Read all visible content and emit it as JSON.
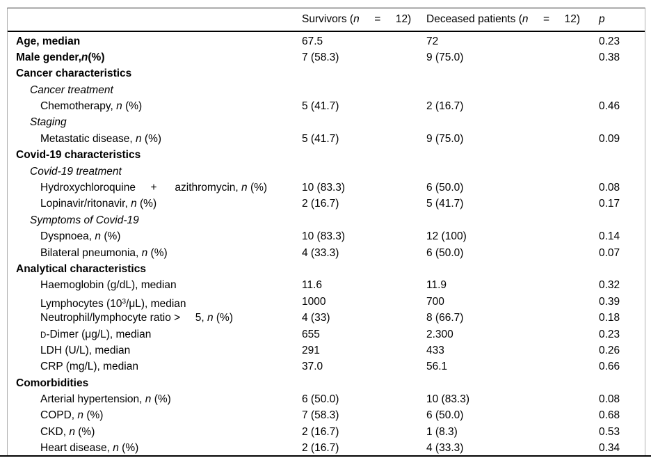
{
  "table": {
    "header": {
      "label_col": "",
      "survivors_col": [
        {
          "t": "Survivors ("
        },
        {
          "t": "n",
          "s": "i"
        },
        {
          "t": "     =     12)"
        }
      ],
      "deceased_col": [
        {
          "t": "Deceased patients ("
        },
        {
          "t": "n",
          "s": "i"
        },
        {
          "t": "     =     12)"
        }
      ],
      "p_col": [
        {
          "t": "p",
          "s": "i"
        }
      ]
    },
    "rows": [
      {
        "indent": 0,
        "bold": true,
        "parts": [
          {
            "t": "Age, median"
          }
        ],
        "v": [
          "67.5",
          "72",
          "0.23"
        ]
      },
      {
        "indent": 0,
        "bold": true,
        "parts": [
          {
            "t": "Male gender,"
          },
          {
            "t": "n",
            "s": "i"
          },
          {
            "t": "(%)"
          }
        ],
        "v": [
          "7 (58.3)",
          "9 (75.0)",
          "0.38"
        ]
      },
      {
        "indent": 0,
        "bold": true,
        "parts": [
          {
            "t": "Cancer characteristics"
          }
        ],
        "v": [
          "",
          "",
          ""
        ]
      },
      {
        "indent": 1,
        "italic": true,
        "parts": [
          {
            "t": "Cancer treatment"
          }
        ],
        "v": [
          "",
          "",
          ""
        ]
      },
      {
        "indent": 2,
        "parts": [
          {
            "t": "Chemotherapy, "
          },
          {
            "t": "n",
            "s": "i"
          },
          {
            "t": " (%)"
          }
        ],
        "v": [
          "5 (41.7)",
          "2 (16.7)",
          "0.46"
        ]
      },
      {
        "indent": 1,
        "italic": true,
        "parts": [
          {
            "t": "Staging"
          }
        ],
        "v": [
          "",
          "",
          ""
        ]
      },
      {
        "indent": 2,
        "parts": [
          {
            "t": "Metastatic disease, "
          },
          {
            "t": "n",
            "s": "i"
          },
          {
            "t": " (%)"
          }
        ],
        "v": [
          "5 (41.7)",
          "9 (75.0)",
          "0.09"
        ]
      },
      {
        "indent": 0,
        "bold": true,
        "parts": [
          {
            "t": "Covid-19 characteristics"
          }
        ],
        "v": [
          "",
          "",
          ""
        ]
      },
      {
        "indent": 1,
        "italic": true,
        "parts": [
          {
            "t": "Covid-19 treatment"
          }
        ],
        "v": [
          "",
          "",
          ""
        ]
      },
      {
        "indent": 2,
        "parts": [
          {
            "t": "Hydroxychloroquine     +      azithromycin, "
          },
          {
            "t": "n",
            "s": "i"
          },
          {
            "t": " (%)"
          }
        ],
        "v": [
          "10 (83.3)",
          "6 (50.0)",
          "0.08"
        ]
      },
      {
        "indent": 2,
        "parts": [
          {
            "t": "Lopinavir/ritonavir, "
          },
          {
            "t": "n",
            "s": "i"
          },
          {
            "t": " (%)"
          }
        ],
        "v": [
          "2 (16.7)",
          "5 (41.7)",
          "0.17"
        ]
      },
      {
        "indent": 1,
        "italic": true,
        "parts": [
          {
            "t": "Symptoms of Covid-19"
          }
        ],
        "v": [
          "",
          "",
          ""
        ]
      },
      {
        "indent": 2,
        "parts": [
          {
            "t": "Dyspnoea, "
          },
          {
            "t": "n",
            "s": "i"
          },
          {
            "t": " (%)"
          }
        ],
        "v": [
          "10 (83.3)",
          "12 (100)",
          "0.14"
        ]
      },
      {
        "indent": 2,
        "parts": [
          {
            "t": "Bilateral pneumonia, "
          },
          {
            "t": "n",
            "s": "i"
          },
          {
            "t": " (%)"
          }
        ],
        "v": [
          "4 (33.3)",
          "6 (50.0)",
          "0.07"
        ]
      },
      {
        "indent": 0,
        "bold": true,
        "parts": [
          {
            "t": "Analytical characteristics"
          }
        ],
        "v": [
          "",
          "",
          ""
        ]
      },
      {
        "indent": 2,
        "parts": [
          {
            "t": "Haemoglobin (g/dL), median"
          }
        ],
        "v": [
          "11.6",
          "11.9",
          "0.32"
        ]
      },
      {
        "indent": 2,
        "parts": [
          {
            "t": "Lymphocytes (10"
          },
          {
            "t": "3",
            "s": "sup"
          },
          {
            "t": "/μL), median"
          }
        ],
        "v": [
          "1000",
          "700",
          "0.39"
        ]
      },
      {
        "indent": 2,
        "parts": [
          {
            "t": "Neutrophil/lymphocyte ratio >     5, "
          },
          {
            "t": "n",
            "s": "i"
          },
          {
            "t": " (%)"
          }
        ],
        "v": [
          "4 (33)",
          "8 (66.7)",
          "0.18"
        ]
      },
      {
        "indent": 2,
        "parts": [
          {
            "t": "D",
            "s": "sc"
          },
          {
            "t": "-Dimer (μg/L), median"
          }
        ],
        "v": [
          "655",
          "2.300",
          "0.23"
        ]
      },
      {
        "indent": 2,
        "parts": [
          {
            "t": "LDH (U/L), median"
          }
        ],
        "v": [
          "291",
          "433",
          "0.26"
        ]
      },
      {
        "indent": 2,
        "parts": [
          {
            "t": "CRP (mg/L), median"
          }
        ],
        "v": [
          "37.0",
          "56.1",
          "0.66"
        ]
      },
      {
        "indent": 0,
        "bold": true,
        "parts": [
          {
            "t": "Comorbidities"
          }
        ],
        "v": [
          "",
          "",
          ""
        ]
      },
      {
        "indent": 2,
        "parts": [
          {
            "t": "Arterial hypertension, "
          },
          {
            "t": "n",
            "s": "i"
          },
          {
            "t": " (%)"
          }
        ],
        "v": [
          "6 (50.0)",
          "10 (83.3)",
          "0.08"
        ]
      },
      {
        "indent": 2,
        "parts": [
          {
            "t": "COPD, "
          },
          {
            "t": "n",
            "s": "i"
          },
          {
            "t": " (%)"
          }
        ],
        "v": [
          "7 (58.3)",
          "6 (50.0)",
          "0.68"
        ]
      },
      {
        "indent": 2,
        "parts": [
          {
            "t": "CKD, "
          },
          {
            "t": "n",
            "s": "i"
          },
          {
            "t": " (%)"
          }
        ],
        "v": [
          "2 (16.7)",
          "1 (8.3)",
          "0.53"
        ]
      },
      {
        "indent": 2,
        "parts": [
          {
            "t": "Heart disease, "
          },
          {
            "t": "n",
            "s": "i"
          },
          {
            "t": " (%)"
          }
        ],
        "v": [
          "2 (16.7)",
          "4 (33.3)",
          "0.34"
        ]
      }
    ],
    "colors": {
      "text": "#000000",
      "rule": "#000000",
      "side_rule": "#b0b0b0",
      "background": "#ffffff"
    }
  }
}
